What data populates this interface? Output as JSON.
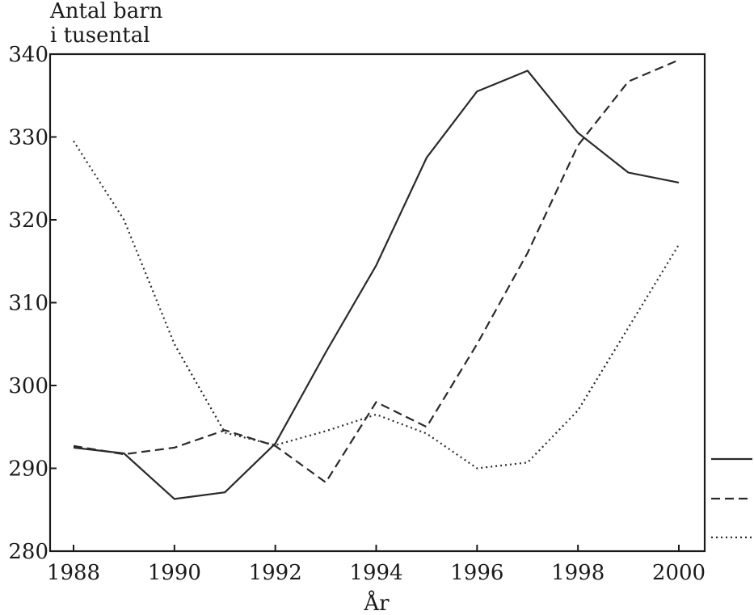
{
  "chart_data": {
    "type": "line",
    "ylabel_line1": "Antal barn",
    "ylabel_line2": "i tusental",
    "xlabel": "År",
    "xlim": [
      1988,
      2000
    ],
    "ylim": [
      280,
      340
    ],
    "x_ticks": [
      "1988",
      "1990",
      "1992",
      "1994",
      "1996",
      "1998",
      "2000"
    ],
    "y_ticks": [
      "280",
      "290",
      "300",
      "310",
      "320",
      "330",
      "340"
    ],
    "grid": false,
    "legend_position": "right, line styles only",
    "x": [
      1988,
      1989,
      1990,
      1991,
      1992,
      1993,
      1994,
      1995,
      1996,
      1997,
      1998,
      1999,
      2000
    ],
    "series": [
      {
        "style": "solid",
        "values": [
          292.5,
          291.8,
          286.3,
          287.1,
          293.0,
          304.0,
          314.5,
          327.5,
          335.5,
          338.0,
          330.5,
          325.7,
          324.5
        ]
      },
      {
        "style": "dashed",
        "values": [
          292.7,
          291.7,
          292.5,
          294.6,
          292.7,
          288.3,
          298.0,
          295.0,
          305.0,
          316.0,
          329.0,
          336.7,
          339.3
        ]
      },
      {
        "style": "dotted",
        "values": [
          329.5,
          320.0,
          305.0,
          294.3,
          292.8,
          294.5,
          296.5,
          294.2,
          290.0,
          290.7,
          297.0,
          307.0,
          317.0
        ]
      }
    ]
  }
}
